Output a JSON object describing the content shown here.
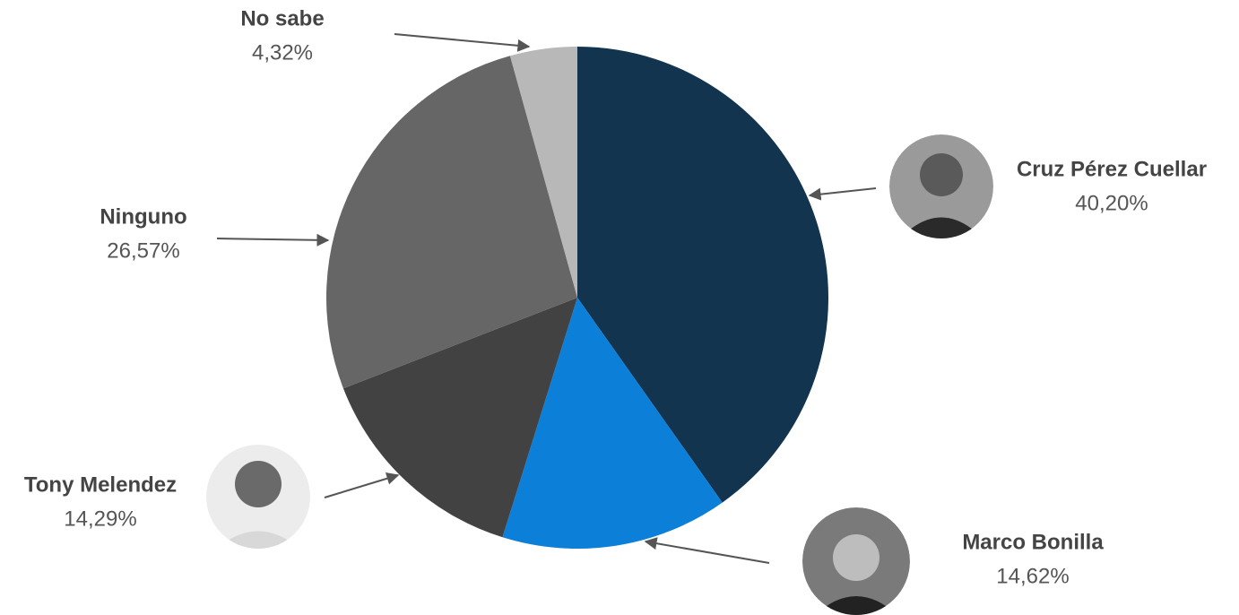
{
  "chart_data": {
    "type": "pie",
    "categories": [
      "Cruz Pérez Cuellar",
      "Marco Bonilla",
      "Tony Melendez",
      "Ninguno",
      "No sabe"
    ],
    "values": [
      40.2,
      14.62,
      14.29,
      26.57,
      4.32
    ],
    "value_labels": [
      "40,20%",
      "14,62%",
      "14,29%",
      "26,57%",
      "4,32%"
    ],
    "colors": [
      "#12344f",
      "#0c80d9",
      "#424242",
      "#666666",
      "#b8b8b8"
    ]
  }
}
